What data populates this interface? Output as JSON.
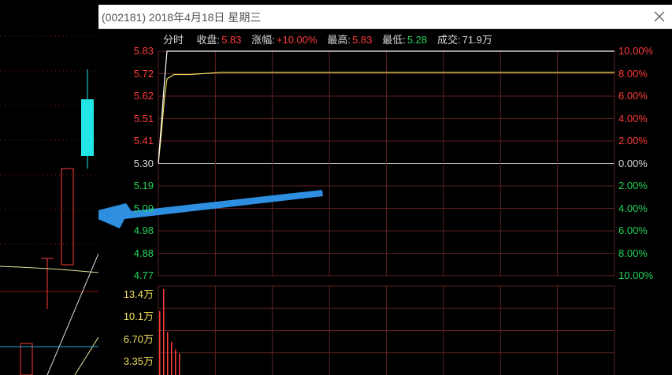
{
  "popup": {
    "title": "(002181) 2018年4月18日 星期三",
    "info": {
      "mode_label": "分时",
      "close_label": "收盘:",
      "close_value": "5.83",
      "change_label": "涨幅:",
      "change_value": "+10.00%",
      "high_label": "最高:",
      "high_value": "5.83",
      "low_label": "最低:",
      "low_value": "5.28",
      "volume_label": "成交:",
      "volume_value": "71.9万"
    },
    "price_axis": [
      "5.83",
      "5.72",
      "5.62",
      "5.51",
      "5.41",
      "5.30",
      "5.19",
      "5.09",
      "4.98",
      "4.88",
      "4.77"
    ],
    "pct_axis": [
      "10.00%",
      "8.00%",
      "6.00%",
      "4.00%",
      "2.00%",
      "0.00%",
      "2.00%",
      "4.00%",
      "6.00%",
      "8.00%",
      "10.00%"
    ],
    "volume_axis": [
      "13.4万",
      "10.1万",
      "6.70万",
      "3.35万"
    ],
    "colors": {
      "up": "#ff3b3b",
      "down": "#24d35a",
      "price_line": "#ffffff",
      "avg_line": "#f0e060",
      "arrow": "#2e8fe0",
      "grid": "#5a2020"
    }
  },
  "chart_data": {
    "type": "line",
    "title": "",
    "prev_close": 5.3,
    "ylim": [
      4.77,
      5.83
    ],
    "series": [
      {
        "values": [
          5.3,
          5.5,
          5.7,
          5.83,
          5.83,
          5.83,
          5.83,
          5.83,
          5.83,
          5.83,
          5.83
        ]
      },
      {
        "values": [
          5.3,
          5.45,
          5.62,
          5.7,
          5.72,
          5.72,
          5.73,
          5.73,
          5.73,
          5.73,
          5.73
        ]
      }
    ],
    "volume": [
      10,
      13.4,
      6.7,
      5.2,
      4.0,
      3.35
    ]
  }
}
